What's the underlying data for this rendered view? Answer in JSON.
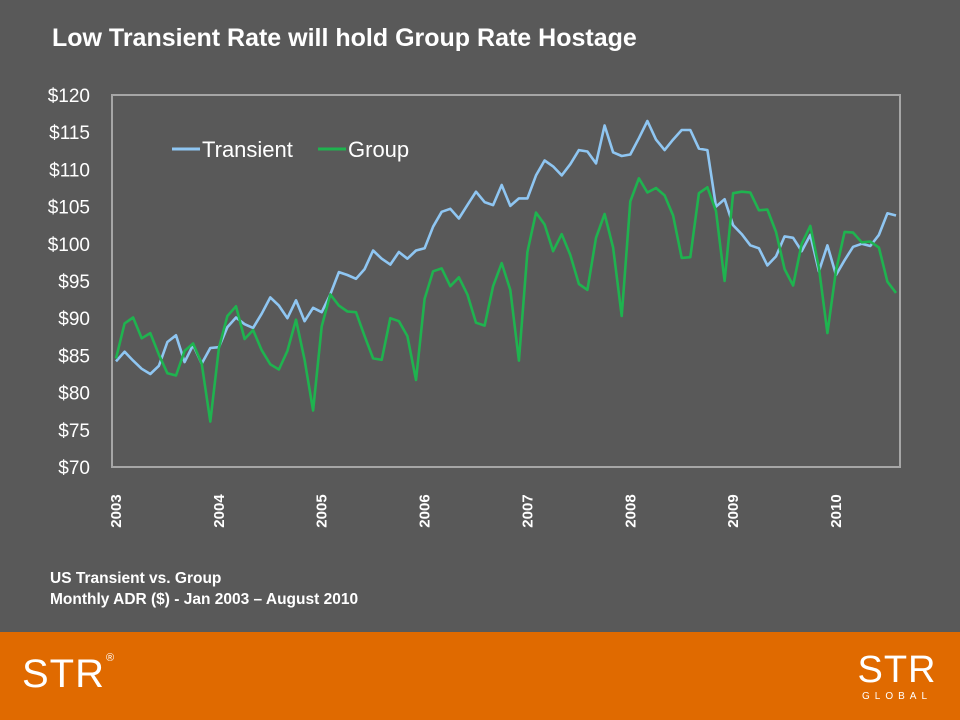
{
  "slide": {
    "title": "Low Transient Rate will hold Group Rate Hostage",
    "caption_line1": "US Transient vs. Group",
    "caption_line2": "Monthly  ADR ($) - Jan 2003 – August 2010"
  },
  "branding": {
    "left_logo": "STR",
    "left_logo_mark": "®",
    "right_logo": "STR",
    "right_logo_sub": "GLOBAL"
  },
  "colors": {
    "background": "#595959",
    "footer": "#e06a00",
    "transient": "#8fc6f2",
    "group": "#1fb34f",
    "axis": "#a6a6a6"
  },
  "chart_data": {
    "type": "line",
    "title": "",
    "xlabel": "",
    "ylabel": "",
    "x_start": "2003-01",
    "x_end": "2010-08",
    "x_tick_labels": [
      "2003",
      "2004",
      "2005",
      "2006",
      "2007",
      "2008",
      "2009",
      "2010"
    ],
    "y_tick_labels": [
      "$120",
      "$115",
      "$110",
      "$105",
      "$100",
      "$95",
      "$90",
      "$85",
      "$80",
      "$75",
      "$70"
    ],
    "ylim": [
      70,
      120
    ],
    "grid": false,
    "legend": "top-left",
    "series": [
      {
        "name": "Transient",
        "color": "#8fc6f2",
        "values": [
          84.2,
          85.5,
          84.3,
          83.2,
          82.5,
          83.6,
          86.8,
          87.7,
          84.1,
          86.4,
          83.9,
          86.0,
          86.1,
          88.8,
          90.1,
          89.2,
          88.7,
          90.6,
          92.8,
          91.7,
          90.0,
          92.4,
          89.6,
          91.4,
          90.8,
          93.2,
          96.2,
          95.8,
          95.3,
          96.6,
          99.1,
          98.0,
          97.2,
          98.9,
          98.0,
          99.1,
          99.4,
          102.3,
          104.3,
          104.7,
          103.4,
          105.2,
          107.0,
          105.6,
          105.2,
          107.9,
          105.1,
          106.1,
          106.1,
          109.2,
          111.2,
          110.4,
          109.2,
          110.7,
          112.6,
          112.4,
          110.8,
          115.9,
          112.3,
          111.8,
          112.0,
          114.2,
          116.5,
          114.0,
          112.6,
          114.0,
          115.3,
          115.3,
          112.8,
          112.6,
          105.0,
          106.0,
          102.5,
          101.3,
          99.8,
          99.4,
          97.1,
          98.3,
          101.0,
          100.8,
          99.0,
          101.2,
          96.3,
          99.8,
          95.8,
          97.8,
          99.6,
          100.0,
          99.7,
          101.2,
          104.1,
          103.8
        ]
      },
      {
        "name": "Group",
        "color": "#1fb34f",
        "values": [
          84.6,
          89.3,
          90.1,
          87.3,
          88.0,
          85.1,
          82.6,
          82.3,
          85.6,
          86.6,
          83.9,
          76.1,
          86.0,
          90.3,
          91.6,
          87.2,
          88.4,
          85.7,
          83.8,
          83.1,
          85.6,
          89.8,
          84.4,
          77.6,
          88.9,
          93.2,
          91.7,
          90.9,
          90.8,
          87.6,
          84.6,
          84.4,
          90.0,
          89.6,
          87.6,
          81.7,
          92.6,
          96.3,
          96.7,
          94.3,
          95.5,
          93.2,
          89.4,
          89.0,
          94.3,
          97.4,
          93.8,
          84.3,
          98.9,
          104.2,
          102.6,
          99.0,
          101.3,
          98.5,
          94.6,
          93.8,
          100.8,
          104.0,
          99.5,
          90.3,
          105.7,
          108.8,
          106.9,
          107.5,
          106.5,
          103.8,
          98.1,
          98.2,
          106.8,
          107.6,
          104.4,
          95.0,
          106.8,
          107.0,
          106.9,
          104.5,
          104.6,
          101.6,
          96.6,
          94.4,
          100.0,
          102.4,
          96.8,
          88.0,
          96.4,
          101.6,
          101.5,
          100.2,
          100.3,
          99.5,
          94.9,
          93.4
        ]
      }
    ]
  }
}
